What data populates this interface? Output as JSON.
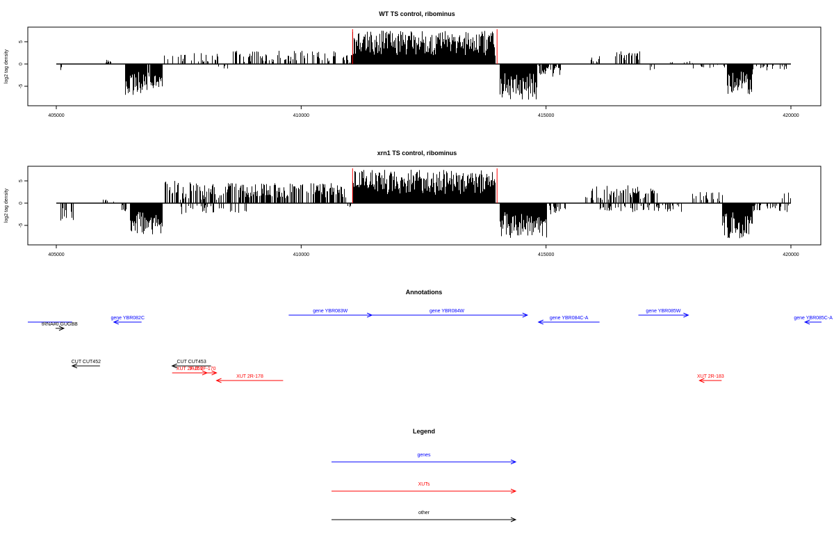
{
  "colors": {
    "gene": "#0000ff",
    "xut": "#ff0000",
    "other": "#000000",
    "marker": "#ff0000",
    "bars": "#000000"
  },
  "chart_data": [
    {
      "type": "bar",
      "title": "WT TS control, ribominus",
      "ylabel": "log2 tag density",
      "xlim": [
        405000,
        420000
      ],
      "ylim": [
        -8,
        8
      ],
      "xticks": [
        "405000",
        "410000",
        "415000",
        "420000"
      ],
      "yticks": [
        "5",
        "0",
        "-5"
      ],
      "markers": [
        411050,
        414000
      ],
      "segments": [
        {
          "start": 405050,
          "end": 405350,
          "density": 0.25,
          "sign": -1,
          "maxMag": 4.0,
          "seed": 11
        },
        {
          "start": 406000,
          "end": 406100,
          "density": 0.6,
          "sign": 1,
          "maxMag": 1.0,
          "seed": 12
        },
        {
          "start": 406400,
          "end": 406850,
          "density": 1.0,
          "sign": -1,
          "maxMag": 7.0,
          "seed": 13
        },
        {
          "start": 406850,
          "end": 407150,
          "density": 0.9,
          "sign": -1,
          "maxMag": 5.5,
          "seed": 14
        },
        {
          "start": 407200,
          "end": 408300,
          "density": 0.35,
          "sign": 1,
          "maxMag": 2.8,
          "seed": 15
        },
        {
          "start": 408300,
          "end": 408500,
          "density": 0.3,
          "sign": -1,
          "maxMag": 1.5,
          "seed": 16
        },
        {
          "start": 408600,
          "end": 410900,
          "density": 0.35,
          "sign": 1,
          "maxMag": 3.0,
          "seed": 17
        },
        {
          "start": 410900,
          "end": 411050,
          "density": 0.3,
          "sign": 1,
          "maxMag": 2.0,
          "seed": 18
        },
        {
          "start": 411050,
          "end": 413950,
          "density": 1.0,
          "sign": 1,
          "maxMag": 7.5,
          "seed": 19
        },
        {
          "start": 414050,
          "end": 414800,
          "density": 1.0,
          "sign": -1,
          "maxMag": 8.0,
          "seed": 20
        },
        {
          "start": 414800,
          "end": 415300,
          "density": 0.5,
          "sign": -1,
          "maxMag": 3.0,
          "seed": 21
        },
        {
          "start": 415900,
          "end": 416100,
          "density": 0.5,
          "sign": 1,
          "maxMag": 2.0,
          "seed": 22
        },
        {
          "start": 416400,
          "end": 416900,
          "density": 0.5,
          "sign": 1,
          "maxMag": 3.0,
          "seed": 23
        },
        {
          "start": 417100,
          "end": 417200,
          "density": 0.4,
          "sign": -1,
          "maxMag": 2.0,
          "seed": 24
        },
        {
          "start": 417500,
          "end": 418000,
          "density": 0.2,
          "sign": 1,
          "maxMag": 1.0,
          "seed": 25
        },
        {
          "start": 418000,
          "end": 418700,
          "density": 0.2,
          "sign": -1,
          "maxMag": 1.2,
          "seed": 26
        },
        {
          "start": 418700,
          "end": 419200,
          "density": 1.0,
          "sign": -1,
          "maxMag": 6.8,
          "seed": 27
        },
        {
          "start": 419200,
          "end": 419900,
          "density": 0.25,
          "sign": -1,
          "maxMag": 1.5,
          "seed": 28
        }
      ]
    },
    {
      "type": "bar",
      "title": "xrn1 TS control, ribominus",
      "ylabel": "log2 tag density",
      "xlim": [
        405000,
        420000
      ],
      "ylim": [
        -8,
        8
      ],
      "xticks": [
        "405000",
        "410000",
        "415000",
        "420000"
      ],
      "yticks": [
        "5",
        "0",
        "-5"
      ],
      "markers": [
        411050,
        414000
      ],
      "segments": [
        {
          "start": 405050,
          "end": 405350,
          "density": 0.35,
          "sign": -1,
          "maxMag": 4.0,
          "seed": 31
        },
        {
          "start": 405900,
          "end": 406300,
          "density": 0.4,
          "sign": 1,
          "maxMag": 1.5,
          "seed": 32
        },
        {
          "start": 406300,
          "end": 406500,
          "density": 0.4,
          "sign": -1,
          "maxMag": 2.5,
          "seed": 33
        },
        {
          "start": 406500,
          "end": 407150,
          "density": 1.0,
          "sign": -1,
          "maxMag": 7.0,
          "seed": 34
        },
        {
          "start": 407200,
          "end": 408400,
          "density": 0.6,
          "sign": 1,
          "maxMag": 5.0,
          "seed": 35
        },
        {
          "start": 407500,
          "end": 409000,
          "density": 0.3,
          "sign": -1,
          "maxMag": 2.5,
          "seed": 36
        },
        {
          "start": 408400,
          "end": 410900,
          "density": 0.7,
          "sign": 1,
          "maxMag": 4.5,
          "seed": 37
        },
        {
          "start": 410900,
          "end": 411050,
          "density": 0.3,
          "sign": -1,
          "maxMag": 1.0,
          "seed": 38
        },
        {
          "start": 411050,
          "end": 413950,
          "density": 1.0,
          "sign": 1,
          "maxMag": 7.5,
          "seed": 39
        },
        {
          "start": 414050,
          "end": 415000,
          "density": 1.0,
          "sign": -1,
          "maxMag": 7.8,
          "seed": 40
        },
        {
          "start": 415000,
          "end": 415400,
          "density": 0.5,
          "sign": -1,
          "maxMag": 2.5,
          "seed": 41
        },
        {
          "start": 415800,
          "end": 417300,
          "density": 0.5,
          "sign": 1,
          "maxMag": 4.0,
          "seed": 42
        },
        {
          "start": 416000,
          "end": 417800,
          "density": 0.3,
          "sign": -1,
          "maxMag": 2.0,
          "seed": 43
        },
        {
          "start": 417800,
          "end": 418600,
          "density": 0.3,
          "sign": 1,
          "maxMag": 2.5,
          "seed": 44
        },
        {
          "start": 418600,
          "end": 419200,
          "density": 1.0,
          "sign": -1,
          "maxMag": 8.0,
          "seed": 45
        },
        {
          "start": 419200,
          "end": 419950,
          "density": 0.4,
          "sign": -1,
          "maxMag": 2.0,
          "seed": 46
        },
        {
          "start": 419800,
          "end": 420000,
          "density": 0.3,
          "sign": 1,
          "maxMag": 2.5,
          "seed": 47
        }
      ]
    }
  ],
  "annotations": {
    "title": "Annotations",
    "xlim": [
      405000,
      420000
    ],
    "items": [
      {
        "kind": "gene",
        "label": "",
        "start": 405000,
        "end": 405800,
        "strand": "none",
        "row": 2
      },
      {
        "kind": "other",
        "label": "tRNA#0.GUGBB",
        "start": 405500,
        "end": 405650,
        "strand": "+",
        "row": 3
      },
      {
        "kind": "gene",
        "label": "gene YBR082C",
        "start": 406550,
        "end": 407050,
        "strand": "-",
        "row": 2
      },
      {
        "kind": "gene",
        "label": "gene YBR083W",
        "start": 409700,
        "end": 411200,
        "strand": "+",
        "row": 0
      },
      {
        "kind": "gene",
        "label": "gene YBR084W",
        "start": 411100,
        "end": 414000,
        "strand": "+",
        "row": 0
      },
      {
        "kind": "gene",
        "label": "gene YBR084C-A",
        "start": 414200,
        "end": 415300,
        "strand": "-",
        "row": 1
      },
      {
        "kind": "gene",
        "label": "gene YBR085W",
        "start": 416000,
        "end": 416900,
        "strand": "+",
        "row": 0
      },
      {
        "kind": "gene",
        "label": "gene YBR085C-A",
        "start": 419000,
        "end": 419300,
        "strand": "-",
        "row": 1
      },
      {
        "kind": "other",
        "label": "CUT CUT452",
        "start": 405800,
        "end": 406300,
        "strand": "-",
        "row": 4
      },
      {
        "kind": "other",
        "label": "CUT CUT453",
        "start": 407600,
        "end": 408300,
        "strand": "-",
        "row": 4
      },
      {
        "kind": "xut",
        "label": "XUT 2F-169",
        "start": 407600,
        "end": 408230,
        "strand": "+",
        "row": 5
      },
      {
        "kind": "xut",
        "label": "XUT 2F-170",
        "start": 407900,
        "end": 408400,
        "strand": "+",
        "row": 5
      },
      {
        "kind": "xut",
        "label": "XUT 2R-178",
        "start": 408400,
        "end": 409600,
        "strand": "-",
        "row": 6
      },
      {
        "kind": "xut",
        "label": "XUT 2R-183",
        "start": 417100,
        "end": 417500,
        "strand": "-",
        "row": 6
      }
    ]
  },
  "legend": {
    "title": "Legend",
    "items": [
      {
        "kind": "gene",
        "label": "genes"
      },
      {
        "kind": "xut",
        "label": "XUTs"
      },
      {
        "kind": "other",
        "label": "other"
      }
    ]
  }
}
